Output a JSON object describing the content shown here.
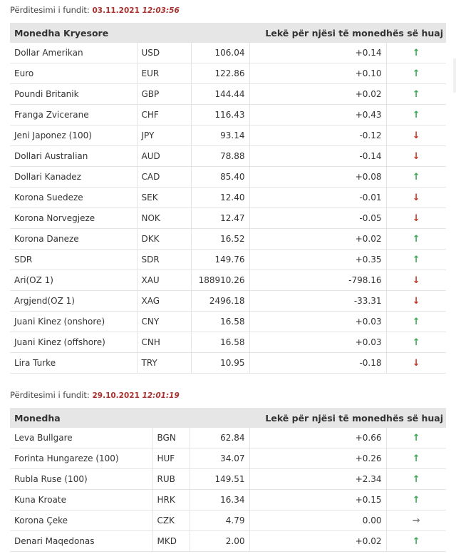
{
  "sections": [
    {
      "update_label": "Përditesimi i fundit:",
      "date": "03.11.2021",
      "time": "12:03:56",
      "header_left": "Monedha Kryesore",
      "header_right": "Lekë për njësi të monedhës së huaj",
      "rows": [
        {
          "name": "Dollar Amerikan",
          "code": "USD",
          "rate": "106.04",
          "change": "+0.14",
          "dir": "up"
        },
        {
          "name": "Euro",
          "code": "EUR",
          "rate": "122.86",
          "change": "+0.10",
          "dir": "up"
        },
        {
          "name": "Poundi Britanik",
          "code": "GBP",
          "rate": "144.44",
          "change": "+0.02",
          "dir": "up"
        },
        {
          "name": "Franga Zvicerane",
          "code": "CHF",
          "rate": "116.43",
          "change": "+0.43",
          "dir": "up"
        },
        {
          "name": "Jeni Japonez (100)",
          "code": "JPY",
          "rate": "93.14",
          "change": "-0.12",
          "dir": "down"
        },
        {
          "name": "Dollari Australian",
          "code": "AUD",
          "rate": "78.88",
          "change": "-0.14",
          "dir": "down"
        },
        {
          "name": "Dollari Kanadez",
          "code": "CAD",
          "rate": "85.40",
          "change": "+0.08",
          "dir": "up"
        },
        {
          "name": "Korona Suedeze",
          "code": "SEK",
          "rate": "12.40",
          "change": "-0.01",
          "dir": "down"
        },
        {
          "name": "Korona Norvegjeze",
          "code": "NOK",
          "rate": "12.47",
          "change": "-0.05",
          "dir": "down"
        },
        {
          "name": "Korona Daneze",
          "code": "DKK",
          "rate": "16.52",
          "change": "+0.02",
          "dir": "up"
        },
        {
          "name": "SDR",
          "code": "SDR",
          "rate": "149.76",
          "change": "+0.35",
          "dir": "up"
        },
        {
          "name": "Ari(OZ 1)",
          "code": "XAU",
          "rate": "188910.26",
          "change": "-798.16",
          "dir": "down"
        },
        {
          "name": "Argjend(OZ 1)",
          "code": "XAG",
          "rate": "2496.18",
          "change": "-33.31",
          "dir": "down"
        },
        {
          "name": "Juani Kinez (onshore)",
          "code": "CNY",
          "rate": "16.58",
          "change": "+0.03",
          "dir": "up"
        },
        {
          "name": "Juani Kinez (offshore)",
          "code": "CNH",
          "rate": "16.58",
          "change": "+0.03",
          "dir": "up"
        },
        {
          "name": "Lira Turke",
          "code": "TRY",
          "rate": "10.95",
          "change": "-0.18",
          "dir": "down"
        }
      ]
    },
    {
      "update_label": "Përditesimi i fundit:",
      "date": "29.10.2021",
      "time": "12:01:19",
      "header_left": "Monedha",
      "header_right": "Lekë për njësi të monedhës së huaj",
      "rows": [
        {
          "name": "Leva Bullgare",
          "code": "BGN",
          "rate": "62.84",
          "change": "+0.66",
          "dir": "up"
        },
        {
          "name": "Forinta Hungareze (100)",
          "code": "HUF",
          "rate": "34.07",
          "change": "+0.26",
          "dir": "up"
        },
        {
          "name": "Rubla Ruse (100)",
          "code": "RUB",
          "rate": "149.51",
          "change": "+2.34",
          "dir": "up"
        },
        {
          "name": "Kuna Kroate",
          "code": "HRK",
          "rate": "16.34",
          "change": "+0.15",
          "dir": "up"
        },
        {
          "name": "Korona Çeke",
          "code": "CZK",
          "rate": "4.79",
          "change": "0.00",
          "dir": "flat"
        },
        {
          "name": "Denari Maqedonas",
          "code": "MKD",
          "rate": "2.00",
          "change": "+0.02",
          "dir": "up"
        }
      ]
    }
  ],
  "icons": {
    "up": "arrow-up-icon",
    "down": "arrow-down-icon",
    "flat": "arrow-right-icon"
  },
  "colors": {
    "up": "#3aa655",
    "down": "#c0392b",
    "flat": "#7f7f7f",
    "date": "#a8322d",
    "header_bg": "#e6e6e6"
  }
}
